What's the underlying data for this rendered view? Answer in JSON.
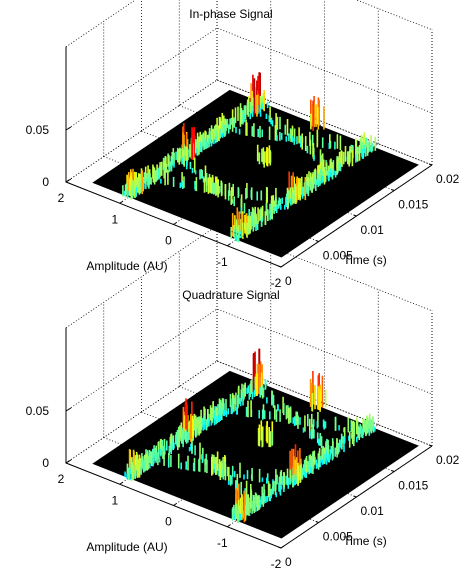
{
  "chart_data": [
    {
      "type": "surface",
      "title": "In-phase Signal",
      "xlabel": "Amplitude (AU)",
      "ylabel": "Time (s)",
      "zlabel": "",
      "xlim": [
        -2,
        2
      ],
      "ylim": [
        0,
        0.02
      ],
      "zlim": [
        0,
        0.05
      ],
      "x_ticks": [
        "2",
        "1",
        "0",
        "-1",
        "-2"
      ],
      "y_ticks": [
        "0",
        "0.005",
        "0.01",
        "0.015",
        "0.02"
      ],
      "z_ticks": [
        "0",
        "0.05"
      ],
      "colormap": "jet",
      "background": "#000000",
      "description_values": {
        "eye_levels_amplitude": [
          1,
          -1
        ],
        "peak_density_z": 0.042
      }
    },
    {
      "type": "surface",
      "title": "Quadrature Signal",
      "xlabel": "Amplitude (AU)",
      "ylabel": "Time (s)",
      "zlabel": "",
      "xlim": [
        -2,
        2
      ],
      "ylim": [
        0,
        0.02
      ],
      "zlim": [
        0,
        0.05
      ],
      "x_ticks": [
        "2",
        "1",
        "0",
        "-1",
        "-2"
      ],
      "y_ticks": [
        "0",
        "0.005",
        "0.01",
        "0.015",
        "0.02"
      ],
      "z_ticks": [
        "0",
        "0.05"
      ],
      "colormap": "jet",
      "background": "#000000",
      "description_values": {
        "eye_levels_amplitude": [
          1,
          -1
        ],
        "peak_density_z": 0.048
      }
    }
  ]
}
